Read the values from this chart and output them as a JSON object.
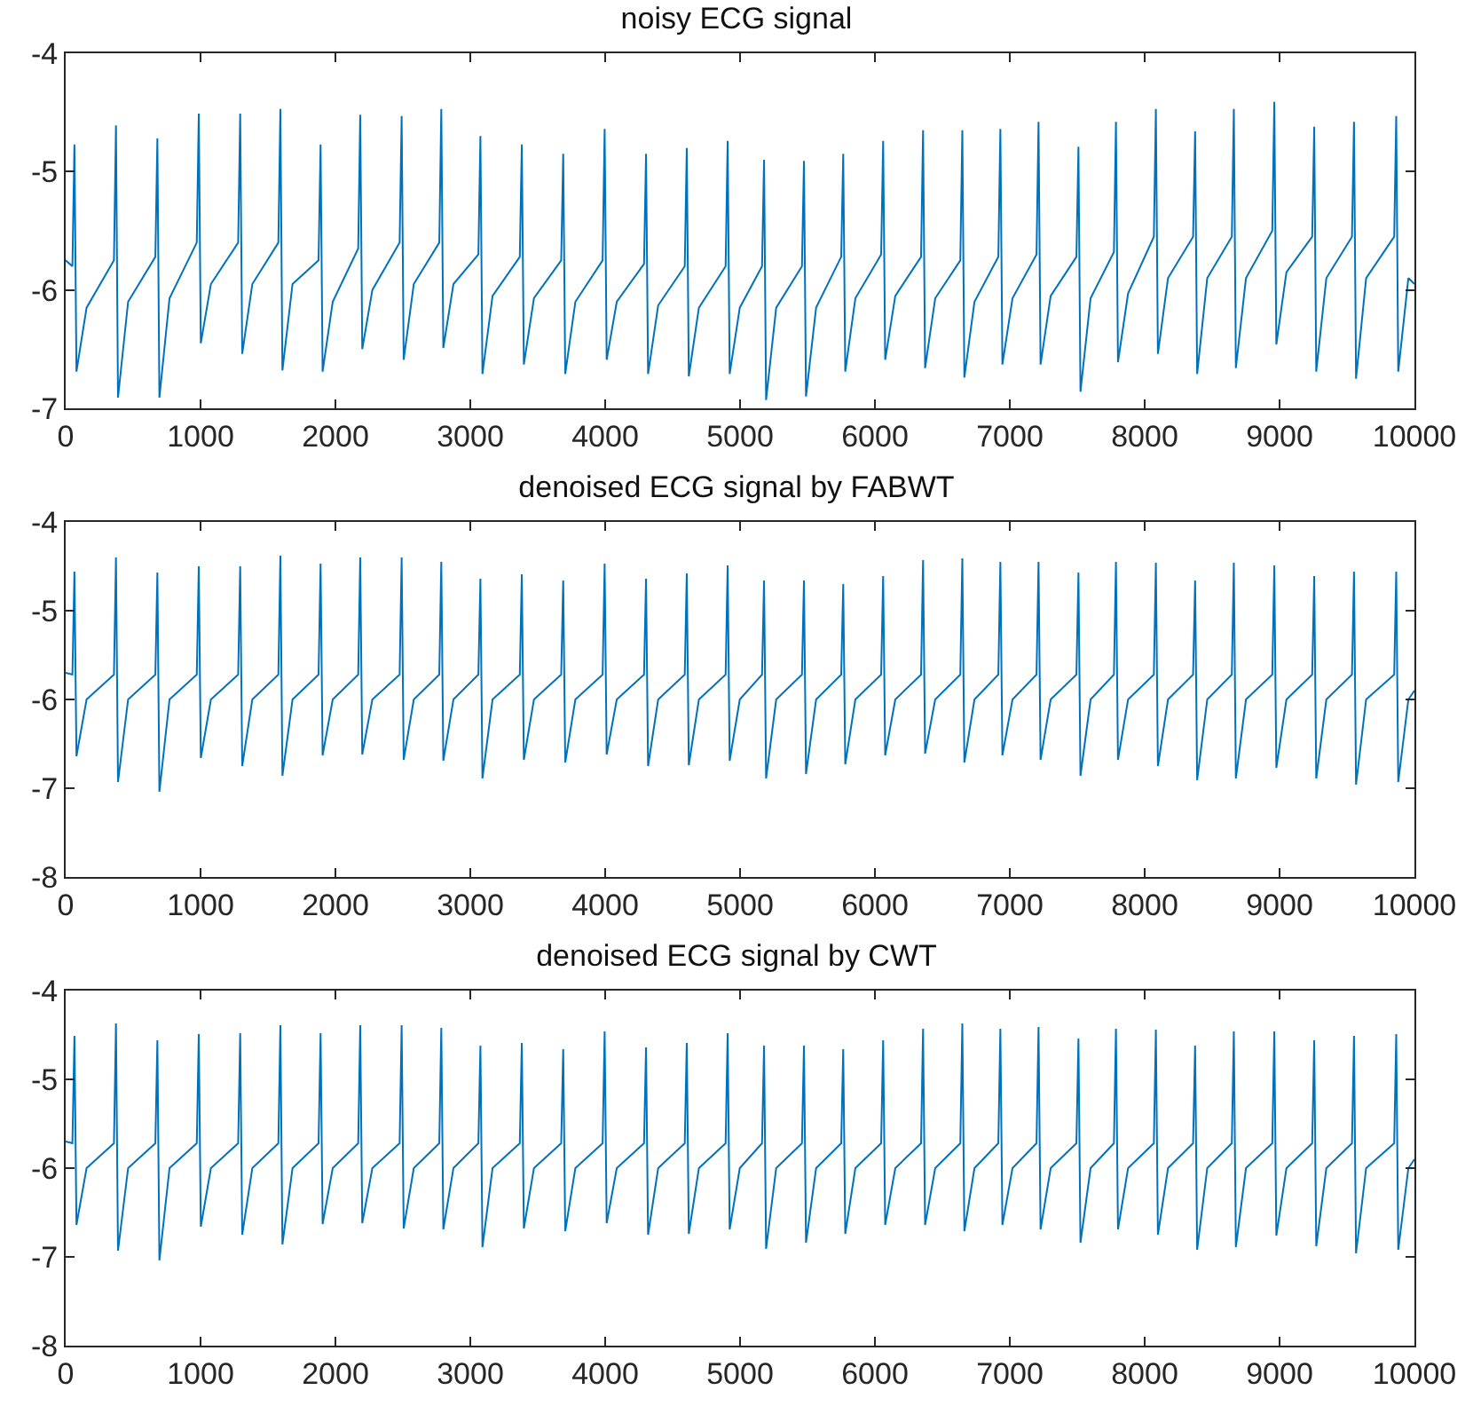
{
  "chart_data": [
    {
      "type": "line",
      "title": "noisy ECG signal",
      "color": "#0072bd",
      "xlim": [
        0,
        10000
      ],
      "xticks": [
        0,
        1000,
        2000,
        3000,
        4000,
        5000,
        6000,
        7000,
        8000,
        9000,
        10000
      ],
      "ylim": [
        -7,
        -4
      ],
      "yticks": [
        -7,
        -6,
        -5,
        -4
      ],
      "x": [
        0,
        50,
        65,
        80,
        155,
        358,
        373,
        388,
        463,
        665,
        680,
        695,
        770,
        972,
        987,
        1002,
        1077,
        1279,
        1294,
        1309,
        1384,
        1577,
        1592,
        1607,
        1682,
        1875,
        1890,
        1905,
        1980,
        2169,
        2184,
        2199,
        2274,
        2476,
        2491,
        2506,
        2581,
        2770,
        2785,
        2800,
        2875,
        3060,
        3075,
        3090,
        3165,
        3367,
        3382,
        3397,
        3472,
        3674,
        3689,
        3704,
        3779,
        3981,
        3996,
        4011,
        4086,
        4288,
        4303,
        4318,
        4393,
        4590,
        4605,
        4620,
        4695,
        4893,
        4908,
        4923,
        4998,
        5163,
        5178,
        5193,
        5268,
        5459,
        5474,
        5489,
        5564,
        5750,
        5765,
        5780,
        5855,
        6046,
        6061,
        6076,
        6151,
        6342,
        6357,
        6372,
        6447,
        6633,
        6648,
        6663,
        6738,
        6915,
        6930,
        6945,
        7020,
        7198,
        7213,
        7228,
        7303,
        7494,
        7509,
        7524,
        7599,
        7772,
        7787,
        7802,
        7877,
        8068,
        8083,
        8098,
        8173,
        8359,
        8374,
        8389,
        8464,
        8646,
        8661,
        8676,
        8751,
        8946,
        8961,
        8976,
        9051,
        9242,
        9257,
        9272,
        9347,
        9537,
        9552,
        9567,
        9642,
        9850,
        9865,
        9880,
        9955,
        10000
      ],
      "values": [
        -5.75,
        -5.8,
        -4.77,
        -6.69,
        -6.15,
        -5.75,
        -4.61,
        -6.91,
        -6.1,
        -5.72,
        -4.72,
        -6.91,
        -6.07,
        -5.6,
        -4.51,
        -6.45,
        -5.95,
        -5.6,
        -4.51,
        -6.54,
        -5.95,
        -5.6,
        -4.47,
        -6.68,
        -5.95,
        -5.75,
        -4.77,
        -6.69,
        -6.1,
        -5.65,
        -4.52,
        -6.5,
        -6.0,
        -5.6,
        -4.53,
        -6.59,
        -5.95,
        -5.6,
        -4.47,
        -6.49,
        -5.95,
        -5.7,
        -4.7,
        -6.71,
        -6.05,
        -5.72,
        -4.77,
        -6.63,
        -6.07,
        -5.75,
        -4.85,
        -6.71,
        -6.1,
        -5.75,
        -4.64,
        -6.59,
        -6.1,
        -5.78,
        -4.85,
        -6.71,
        -6.13,
        -5.8,
        -4.8,
        -6.73,
        -6.15,
        -5.8,
        -4.74,
        -6.71,
        -6.15,
        -5.8,
        -4.9,
        -6.93,
        -6.15,
        -5.8,
        -4.91,
        -6.9,
        -6.15,
        -5.72,
        -4.85,
        -6.69,
        -6.07,
        -5.7,
        -4.74,
        -6.59,
        -6.05,
        -5.72,
        -4.65,
        -6.66,
        -6.07,
        -5.75,
        -4.65,
        -6.74,
        -6.1,
        -5.72,
        -4.64,
        -6.63,
        -6.07,
        -5.7,
        -4.58,
        -6.63,
        -6.05,
        -5.72,
        -4.79,
        -6.86,
        -6.07,
        -5.68,
        -4.58,
        -6.61,
        -6.03,
        -5.55,
        -4.47,
        -6.54,
        -5.9,
        -5.55,
        -4.66,
        -6.71,
        -5.9,
        -5.55,
        -4.47,
        -6.66,
        -5.9,
        -5.5,
        -4.41,
        -6.46,
        -5.85,
        -5.55,
        -4.62,
        -6.69,
        -5.9,
        -5.55,
        -4.58,
        -6.75,
        -5.9,
        -5.55,
        -4.53,
        -6.69,
        -5.9,
        -5.95
      ]
    },
    {
      "type": "line",
      "title": "denoised ECG signal by FABWT",
      "color": "#0072bd",
      "xlim": [
        0,
        10000
      ],
      "xticks": [
        0,
        1000,
        2000,
        3000,
        4000,
        5000,
        6000,
        7000,
        8000,
        9000,
        10000
      ],
      "ylim": [
        -8,
        -4
      ],
      "yticks": [
        -8,
        -7,
        -6,
        -5,
        -4
      ],
      "x": [
        0,
        50,
        65,
        80,
        155,
        358,
        373,
        388,
        463,
        665,
        680,
        695,
        770,
        972,
        987,
        1002,
        1077,
        1279,
        1294,
        1309,
        1384,
        1577,
        1592,
        1607,
        1682,
        1875,
        1890,
        1905,
        1980,
        2169,
        2184,
        2199,
        2274,
        2476,
        2491,
        2506,
        2581,
        2770,
        2785,
        2800,
        2875,
        3060,
        3075,
        3090,
        3165,
        3367,
        3382,
        3397,
        3472,
        3674,
        3689,
        3704,
        3779,
        3981,
        3996,
        4011,
        4086,
        4288,
        4303,
        4318,
        4393,
        4590,
        4605,
        4620,
        4695,
        4893,
        4908,
        4923,
        4998,
        5163,
        5178,
        5193,
        5268,
        5459,
        5474,
        5489,
        5564,
        5750,
        5765,
        5780,
        5855,
        6046,
        6061,
        6076,
        6151,
        6342,
        6357,
        6372,
        6447,
        6633,
        6648,
        6663,
        6738,
        6915,
        6930,
        6945,
        7020,
        7198,
        7213,
        7228,
        7303,
        7494,
        7509,
        7524,
        7599,
        7772,
        7787,
        7802,
        7877,
        8068,
        8083,
        8098,
        8173,
        8359,
        8374,
        8389,
        8464,
        8646,
        8661,
        8676,
        8751,
        8946,
        8961,
        8976,
        9051,
        9242,
        9257,
        9272,
        9347,
        9537,
        9552,
        9567,
        9642,
        9850,
        9865,
        9880,
        9955,
        10000
      ],
      "values": [
        -5.7,
        -5.72,
        -4.56,
        -6.64,
        -6.0,
        -5.72,
        -4.4,
        -6.93,
        -6.0,
        -5.72,
        -4.57,
        -7.04,
        -6.0,
        -5.72,
        -4.5,
        -6.66,
        -6.0,
        -5.72,
        -4.5,
        -6.75,
        -6.0,
        -5.72,
        -4.38,
        -6.86,
        -6.0,
        -5.72,
        -4.47,
        -6.63,
        -6.0,
        -5.72,
        -4.4,
        -6.62,
        -6.0,
        -5.72,
        -4.4,
        -6.68,
        -6.0,
        -5.72,
        -4.45,
        -6.69,
        -6.0,
        -5.72,
        -4.64,
        -6.89,
        -6.0,
        -5.72,
        -4.59,
        -6.68,
        -6.0,
        -5.72,
        -4.66,
        -6.71,
        -6.0,
        -5.72,
        -4.47,
        -6.62,
        -6.0,
        -5.72,
        -4.64,
        -6.75,
        -6.0,
        -5.72,
        -4.58,
        -6.74,
        -6.0,
        -5.72,
        -4.49,
        -6.69,
        -6.0,
        -5.72,
        -4.66,
        -6.89,
        -6.0,
        -5.72,
        -4.66,
        -6.84,
        -6.0,
        -5.72,
        -4.7,
        -6.73,
        -6.0,
        -5.72,
        -4.61,
        -6.63,
        -6.0,
        -5.72,
        -4.43,
        -6.61,
        -6.0,
        -5.72,
        -4.41,
        -6.71,
        -6.0,
        -5.72,
        -4.45,
        -6.63,
        -6.0,
        -5.72,
        -4.45,
        -6.68,
        -6.0,
        -5.72,
        -4.57,
        -6.86,
        -6.0,
        -5.72,
        -4.45,
        -6.68,
        -6.0,
        -5.72,
        -4.46,
        -6.75,
        -6.0,
        -5.72,
        -4.66,
        -6.91,
        -6.0,
        -5.72,
        -4.46,
        -6.89,
        -6.0,
        -5.72,
        -4.49,
        -6.77,
        -6.0,
        -5.72,
        -4.61,
        -6.89,
        -6.0,
        -5.72,
        -4.56,
        -6.96,
        -6.0,
        -5.72,
        -4.56,
        -6.93,
        -6.0,
        -5.9
      ]
    },
    {
      "type": "line",
      "title": "denoised ECG signal by CWT",
      "color": "#0072bd",
      "xlim": [
        0,
        10000
      ],
      "xticks": [
        0,
        1000,
        2000,
        3000,
        4000,
        5000,
        6000,
        7000,
        8000,
        9000,
        10000
      ],
      "ylim": [
        -8,
        -4
      ],
      "yticks": [
        -8,
        -7,
        -6,
        -5,
        -4
      ],
      "x": [
        0,
        50,
        65,
        80,
        155,
        358,
        373,
        388,
        463,
        665,
        680,
        695,
        770,
        972,
        987,
        1002,
        1077,
        1279,
        1294,
        1309,
        1384,
        1577,
        1592,
        1607,
        1682,
        1875,
        1890,
        1905,
        1980,
        2169,
        2184,
        2199,
        2274,
        2476,
        2491,
        2506,
        2581,
        2770,
        2785,
        2800,
        2875,
        3060,
        3075,
        3090,
        3165,
        3367,
        3382,
        3397,
        3472,
        3674,
        3689,
        3704,
        3779,
        3981,
        3996,
        4011,
        4086,
        4288,
        4303,
        4318,
        4393,
        4590,
        4605,
        4620,
        4695,
        4893,
        4908,
        4923,
        4998,
        5163,
        5178,
        5193,
        5268,
        5459,
        5474,
        5489,
        5564,
        5750,
        5765,
        5780,
        5855,
        6046,
        6061,
        6076,
        6151,
        6342,
        6357,
        6372,
        6447,
        6633,
        6648,
        6663,
        6738,
        6915,
        6930,
        6945,
        7020,
        7198,
        7213,
        7228,
        7303,
        7494,
        7509,
        7524,
        7599,
        7772,
        7787,
        7802,
        7877,
        8068,
        8083,
        8098,
        8173,
        8359,
        8374,
        8389,
        8464,
        8646,
        8661,
        8676,
        8751,
        8946,
        8961,
        8976,
        9051,
        9242,
        9257,
        9272,
        9347,
        9537,
        9552,
        9567,
        9642,
        9850,
        9865,
        9880,
        9955,
        10000
      ],
      "values": [
        -5.7,
        -5.72,
        -4.51,
        -6.64,
        -6.0,
        -5.72,
        -4.37,
        -6.93,
        -6.0,
        -5.72,
        -4.56,
        -7.04,
        -6.0,
        -5.72,
        -4.49,
        -6.66,
        -6.0,
        -5.72,
        -4.48,
        -6.75,
        -6.0,
        -5.72,
        -4.39,
        -6.86,
        -6.0,
        -5.72,
        -4.48,
        -6.63,
        -6.0,
        -5.72,
        -4.39,
        -6.62,
        -6.0,
        -5.72,
        -4.39,
        -6.68,
        -6.0,
        -5.72,
        -4.42,
        -6.69,
        -6.0,
        -5.72,
        -4.62,
        -6.89,
        -6.0,
        -5.72,
        -4.59,
        -6.68,
        -6.0,
        -5.72,
        -4.66,
        -6.71,
        -6.0,
        -5.72,
        -4.46,
        -6.62,
        -6.0,
        -5.72,
        -4.64,
        -6.75,
        -6.0,
        -5.72,
        -4.59,
        -6.74,
        -6.0,
        -5.72,
        -4.48,
        -6.69,
        -6.0,
        -5.72,
        -4.62,
        -6.91,
        -6.0,
        -5.72,
        -4.62,
        -6.84,
        -6.0,
        -5.72,
        -4.66,
        -6.74,
        -6.0,
        -5.72,
        -4.56,
        -6.64,
        -6.0,
        -5.72,
        -4.43,
        -6.64,
        -6.0,
        -5.72,
        -4.37,
        -6.71,
        -6.0,
        -5.72,
        -4.43,
        -6.64,
        -6.0,
        -5.72,
        -4.41,
        -6.69,
        -6.0,
        -5.72,
        -4.54,
        -6.84,
        -6.0,
        -5.72,
        -4.43,
        -6.69,
        -6.0,
        -5.72,
        -4.44,
        -6.75,
        -6.0,
        -5.72,
        -4.62,
        -6.92,
        -6.0,
        -5.72,
        -4.46,
        -6.89,
        -6.0,
        -5.72,
        -4.46,
        -6.76,
        -6.0,
        -5.72,
        -4.56,
        -6.88,
        -6.0,
        -5.72,
        -4.51,
        -6.96,
        -6.0,
        -5.72,
        -4.49,
        -6.92,
        -6.0,
        -5.9
      ]
    }
  ]
}
